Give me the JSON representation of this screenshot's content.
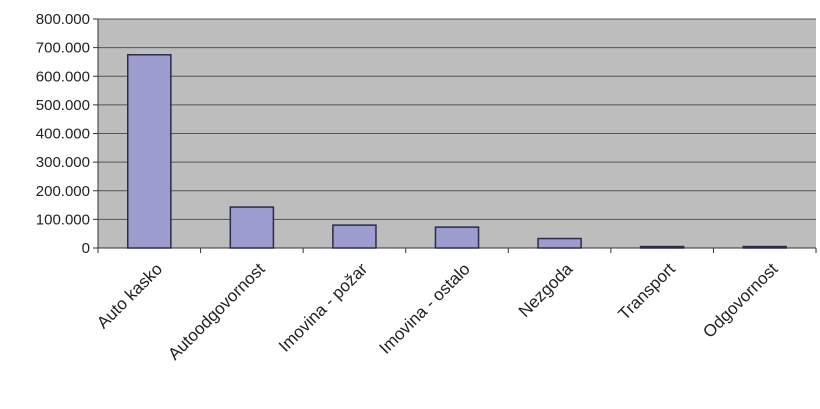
{
  "chart_data": {
    "type": "bar",
    "title": "",
    "xlabel": "",
    "ylabel": "",
    "categories": [
      "Auto kasko",
      "Autoodgovornost",
      "Imovina - požar",
      "Imovina - ostalo",
      "Nezgoda",
      "Transport",
      "Odgovornost"
    ],
    "values": [
      675000,
      143000,
      80000,
      73000,
      33000,
      5000,
      5000
    ],
    "ylim": [
      0,
      800000
    ],
    "yticks": [
      0,
      100000,
      200000,
      300000,
      400000,
      500000,
      600000,
      700000,
      800000
    ],
    "ytick_labels": [
      "0",
      "100.000",
      "200.000",
      "300.000",
      "400.000",
      "500.000",
      "600.000",
      "700.000",
      "800.000"
    ],
    "grid": true,
    "legend": "none",
    "colors": {
      "plot_background": "#bdbdbd",
      "bar_fill": "#9c9ccf",
      "bar_stroke": "#2b2b4a",
      "gridline": "#555555"
    }
  }
}
